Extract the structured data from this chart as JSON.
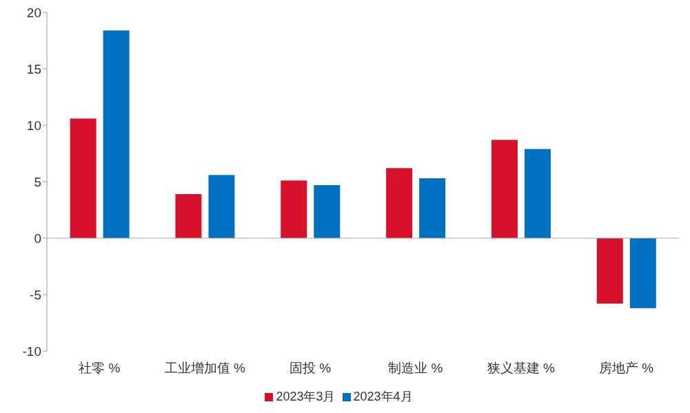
{
  "chart_data": {
    "type": "bar",
    "categories": [
      "社零 %",
      "工业增加值 %",
      "固投 %",
      "制造业 %",
      "狭义基建 %",
      "房地产 %"
    ],
    "series": [
      {
        "name": "2023年3月",
        "color": "#d7102b",
        "values": [
          10.6,
          3.9,
          5.1,
          6.2,
          8.7,
          -5.8
        ]
      },
      {
        "name": "2023年4月",
        "color": "#0070c0",
        "values": [
          18.4,
          5.6,
          4.7,
          5.3,
          7.9,
          -6.2
        ]
      }
    ],
    "ref_lines": [
      {
        "axis": "y",
        "value": 0,
        "color": "#a6a6a6"
      }
    ],
    "ylim": [
      -10,
      20
    ],
    "yticks": [
      -10,
      -5,
      0,
      5,
      10,
      15,
      20
    ],
    "grid": false,
    "legend": "bottom"
  }
}
